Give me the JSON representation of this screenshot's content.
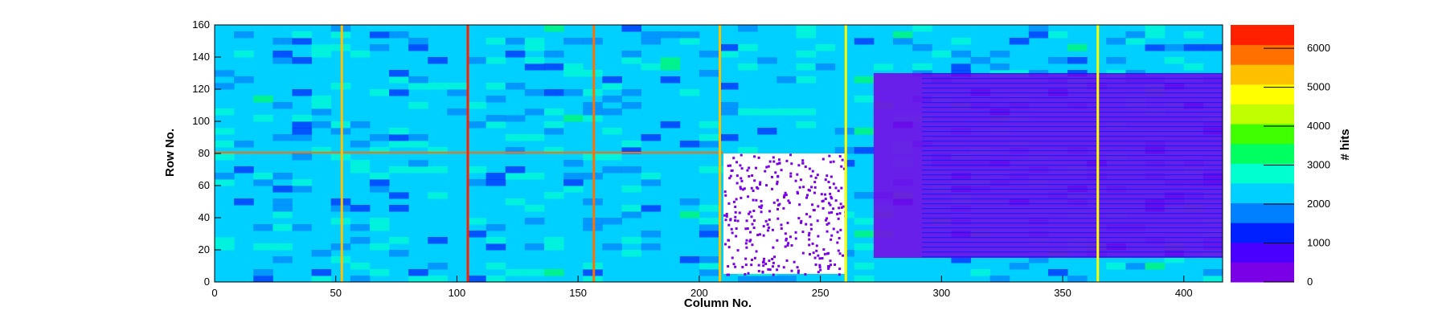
{
  "chart_data": {
    "type": "heatmap",
    "title": "",
    "xlabel": "Column No.",
    "ylabel": "Row No.",
    "zlabel": "# hits",
    "xlim": [
      0,
      416
    ],
    "ylim": [
      0,
      160
    ],
    "zlim": [
      0,
      6600
    ],
    "x_ticks": [
      0,
      50,
      100,
      150,
      200,
      250,
      300,
      350,
      400
    ],
    "y_ticks": [
      0,
      20,
      40,
      60,
      80,
      100,
      120,
      140,
      160
    ],
    "z_ticks": [
      0,
      1000,
      2000,
      3000,
      4000,
      5000,
      6000
    ],
    "colormap": [
      "#7a00e6",
      "#4a00ff",
      "#0020ff",
      "#0080ff",
      "#00d0ff",
      "#00ffd0",
      "#00ff60",
      "#40ff00",
      "#c0ff00",
      "#ffff00",
      "#ffc000",
      "#ff7000",
      "#ff2000"
    ],
    "background_level": 2300,
    "high_occupancy_columns": [
      {
        "column": 52,
        "hits": 5200
      },
      {
        "column": 104,
        "hits": 6200
      },
      {
        "column": 156,
        "hits": 6000
      },
      {
        "column": 208,
        "hits": 5200
      },
      {
        "column": 260,
        "hits": 5000
      },
      {
        "column": 364,
        "hits": 4800
      }
    ],
    "high_occupancy_row": {
      "row": 80,
      "hits": 6000
    },
    "zero_hit_region": {
      "x": [
        210,
        260
      ],
      "y": [
        5,
        80
      ]
    },
    "low_hit_region": {
      "x": [
        272,
        416
      ],
      "y": [
        15,
        130
      ],
      "hits": 400
    }
  }
}
